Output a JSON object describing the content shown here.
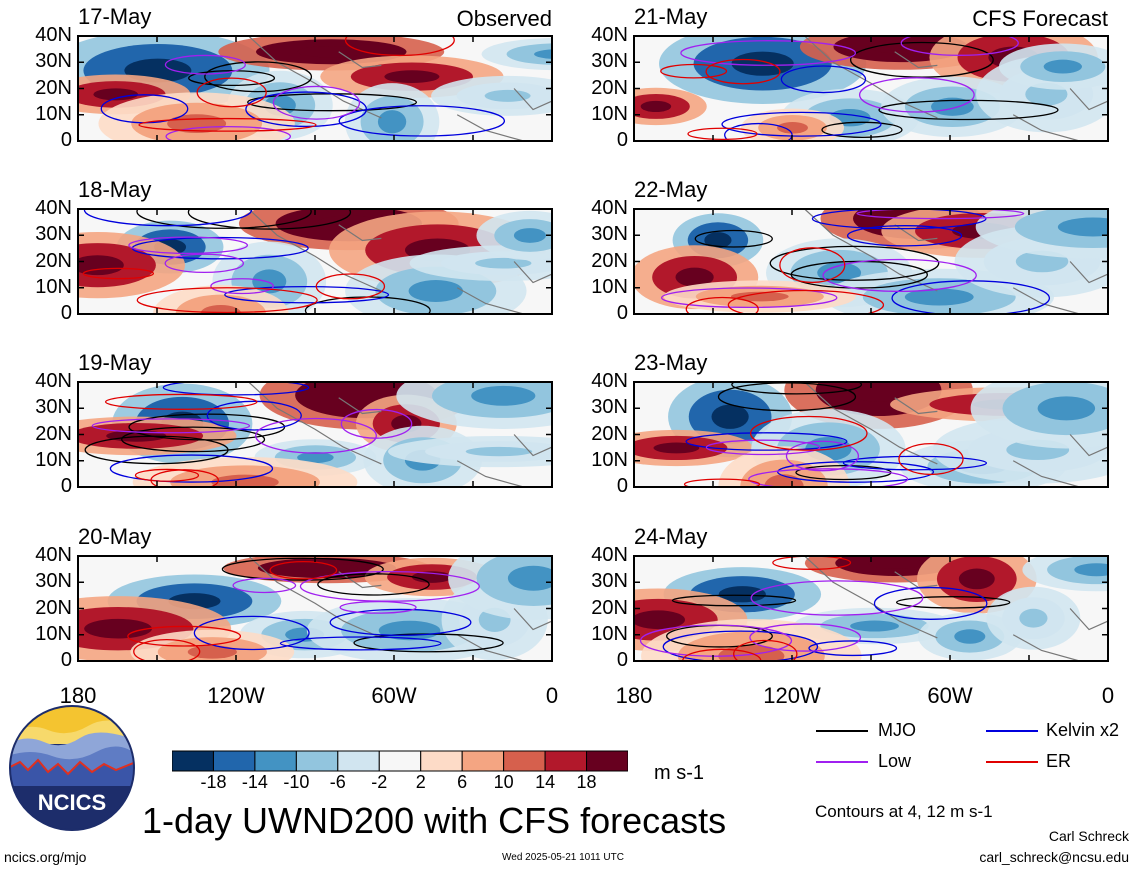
{
  "chart_data": {
    "type": "heatmap",
    "title": "1-day UWND200 with CFS forecasts",
    "variable": "UWND200",
    "units": "m s-1",
    "contour_note": "Contours at 4, 12 m s-1",
    "observed_label": "Observed",
    "forecast_label": "CFS Forecast",
    "lat_ticks": [
      "40N",
      "30N",
      "20N",
      "10N",
      "0"
    ],
    "lon_ticks": [
      "180",
      "120W",
      "60W",
      "0"
    ],
    "lat_range": [
      0,
      40
    ],
    "lon_range": [
      -180,
      0
    ],
    "colorbar": {
      "levels": [
        "-18",
        "-14",
        "-10",
        "-6",
        "-2",
        "2",
        "6",
        "10",
        "14",
        "18"
      ],
      "colors": [
        "#053061",
        "#2166ac",
        "#4393c3",
        "#92c5de",
        "#d1e5f0",
        "#f7f7f7",
        "#fddbc7",
        "#f4a582",
        "#d6604d",
        "#b2182b",
        "#67001f"
      ]
    },
    "legend": [
      {
        "name": "MJO",
        "color": "#000000"
      },
      {
        "name": "Kelvin x2",
        "color": "#0000dd"
      },
      {
        "name": "Low",
        "color": "#a020f0"
      },
      {
        "name": "ER",
        "color": "#e00000"
      }
    ],
    "panels": [
      {
        "date": "17-May",
        "column": "observed",
        "tag": "Observed"
      },
      {
        "date": "18-May",
        "column": "observed"
      },
      {
        "date": "19-May",
        "column": "observed"
      },
      {
        "date": "20-May",
        "column": "observed"
      },
      {
        "date": "21-May",
        "column": "forecast",
        "tag": "CFS Forecast"
      },
      {
        "date": "22-May",
        "column": "forecast"
      },
      {
        "date": "23-May",
        "column": "forecast"
      },
      {
        "date": "24-May",
        "column": "forecast"
      }
    ]
  },
  "logo": {
    "text": "NCICS"
  },
  "footer": {
    "url": "ncics.org/mjo",
    "timestamp": "Wed 2025-05-21 1011 UTC",
    "author": "Carl Schreck",
    "email": "carl_schreck@ncsu.edu"
  }
}
